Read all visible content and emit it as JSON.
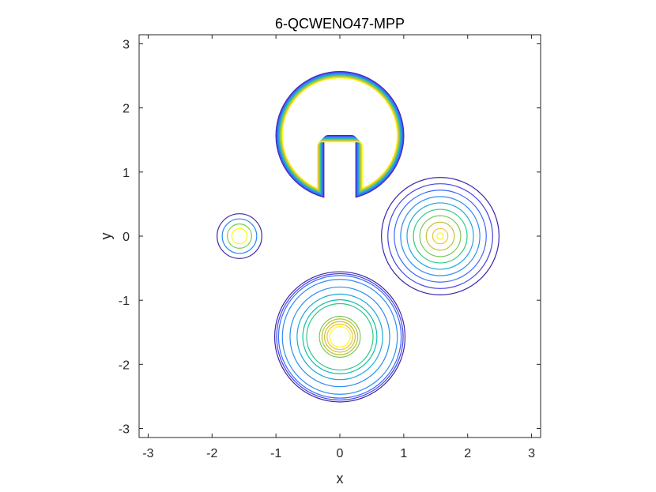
{
  "chart_data": {
    "type": "contour",
    "title": "6-QCWENO47-MPP",
    "xlabel": "x",
    "ylabel": "y",
    "xlim": [
      -3.14159,
      3.14159
    ],
    "ylim": [
      -3.14159,
      3.14159
    ],
    "xticks": [
      -3,
      -2,
      -1,
      0,
      1,
      2,
      3
    ],
    "yticks": [
      -3,
      -2,
      -1,
      0,
      1,
      2,
      3
    ],
    "xtick_labels": [
      "-3",
      "-2",
      "-1",
      "0",
      "1",
      "2",
      "3"
    ],
    "ytick_labels": [
      "-3",
      "-2",
      "-1",
      "0",
      "1",
      "2",
      "3"
    ],
    "grid": false,
    "colormap": [
      "#3e26a8",
      "#4743e4",
      "#3c68fd",
      "#2c8ef1",
      "#1fa8db",
      "#13bdb2",
      "#30c885",
      "#7cc95a",
      "#c2c237",
      "#f1c33a",
      "#f9fb15"
    ],
    "features": [
      {
        "shape": "slotted-disk",
        "center": [
          0,
          1.571
        ],
        "radius": 1.0,
        "slot_halfwidth": 0.25,
        "slot_top": 1.57,
        "contour_levels": 10
      },
      {
        "shape": "cone",
        "center": [
          1.571,
          0
        ],
        "radii": [
          0.92,
          0.82,
          0.72,
          0.62,
          0.52,
          0.42,
          0.32,
          0.22,
          0.12,
          0.05
        ]
      },
      {
        "shape": "hump",
        "center": [
          0,
          -1.571
        ],
        "radii": [
          1.02,
          0.99,
          0.96,
          0.9,
          0.78,
          0.67,
          0.58,
          0.52,
          0.32,
          0.28,
          0.24,
          0.2,
          0.16
        ]
      },
      {
        "shape": "small-bump",
        "center": [
          -1.571,
          0
        ],
        "radii": [
          0.35,
          0.27,
          0.19,
          0.12
        ]
      }
    ]
  }
}
